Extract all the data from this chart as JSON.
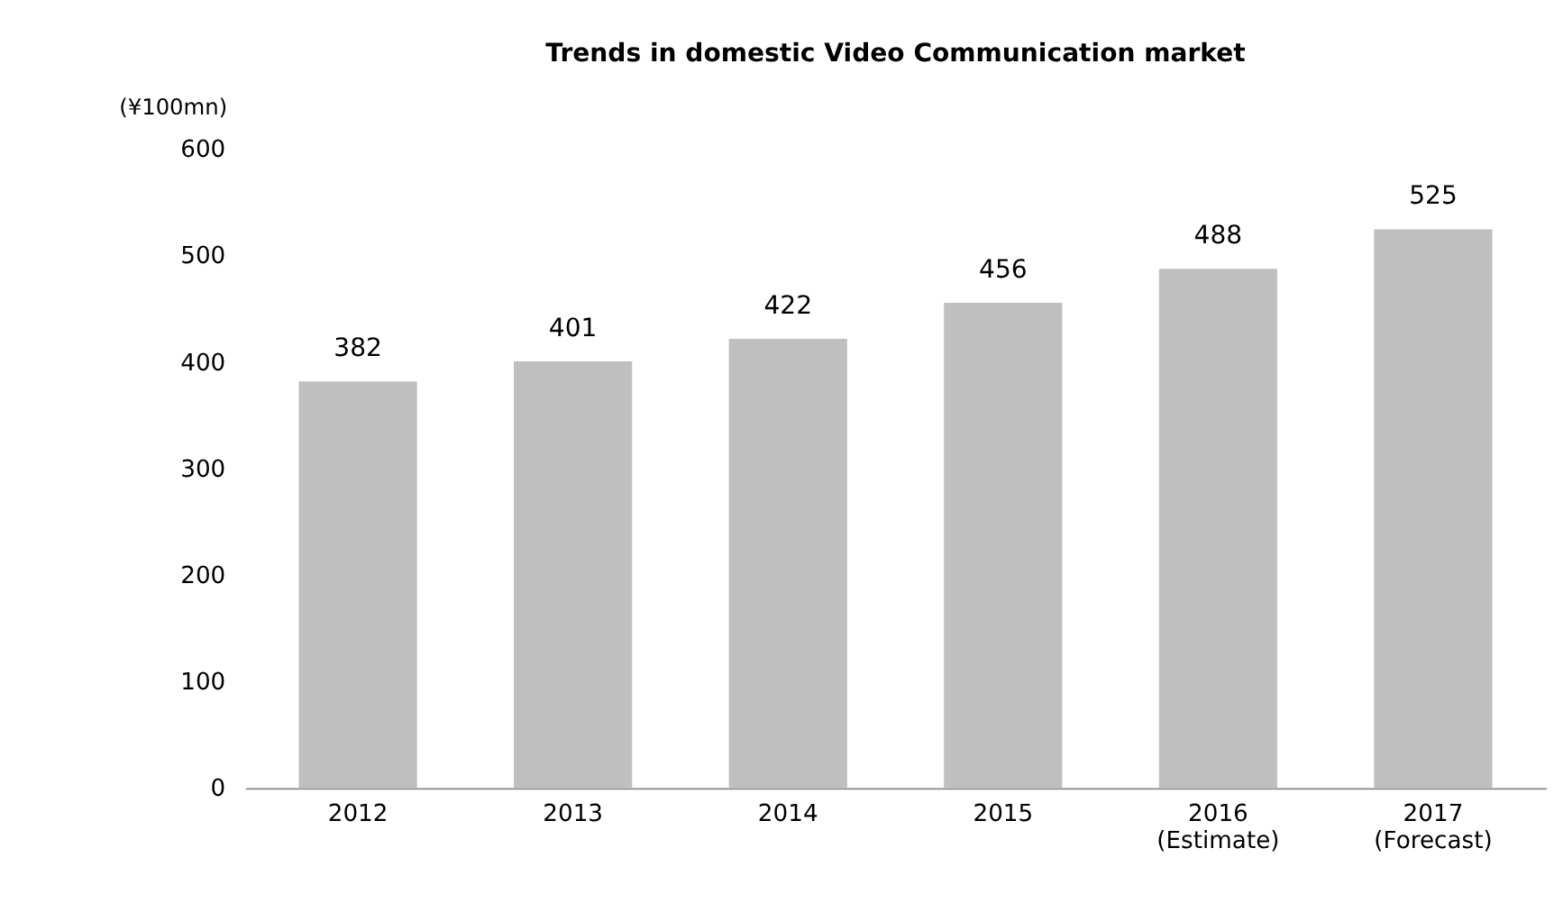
{
  "chart_data": {
    "type": "bar",
    "title": "Trends in domestic Video Communication market",
    "ylabel": "(¥100mn)",
    "categories": [
      "2012",
      "2013",
      "2014",
      "2015",
      "2016\n(Estimate)",
      "2017\n(Forecast)"
    ],
    "values": [
      382,
      401,
      422,
      456,
      488,
      525
    ],
    "color": "#bfbfbf",
    "ylim": [
      0,
      600
    ],
    "yticks": [
      0,
      100,
      200,
      300,
      400,
      500,
      600
    ],
    "grid": false,
    "data_labels": true
  }
}
